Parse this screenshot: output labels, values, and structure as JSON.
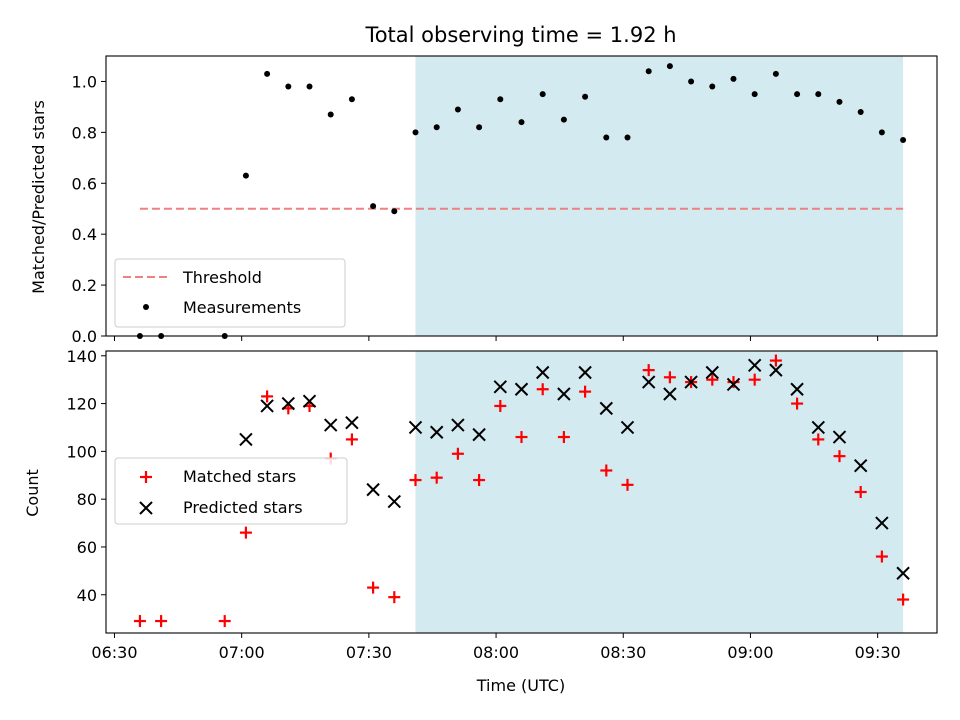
{
  "chart_data": [
    {
      "type": "scatter",
      "title": "Total observing time = 1.92 h",
      "xlabel": "",
      "ylabel": "Matched/Predicted stars",
      "ylim": [
        0,
        1.1
      ],
      "yticks": [
        "0.0",
        "0.2",
        "0.4",
        "0.6",
        "0.8",
        "1.0"
      ],
      "xlim": [
        "06:28",
        "09:44"
      ],
      "shaded_region": {
        "from": "07:41",
        "to": "09:36",
        "color": "#d4eaf1"
      },
      "legend": {
        "placement": "lower-left",
        "entries": [
          "Threshold",
          "Measurements"
        ]
      },
      "threshold": {
        "name": "Threshold",
        "value": 0.5,
        "from": "06:36",
        "to": "09:36",
        "color": "#f08080"
      },
      "series": [
        {
          "name": "Measurements",
          "color": "#000000",
          "points": [
            [
              "06:36",
              0.0
            ],
            [
              "06:41",
              0.0
            ],
            [
              "06:56",
              0.0
            ],
            [
              "07:01",
              0.63
            ],
            [
              "07:06",
              1.03
            ],
            [
              "07:11",
              0.98
            ],
            [
              "07:16",
              0.98
            ],
            [
              "07:21",
              0.87
            ],
            [
              "07:26",
              0.93
            ],
            [
              "07:31",
              0.51
            ],
            [
              "07:36",
              0.49
            ],
            [
              "07:41",
              0.8
            ],
            [
              "07:46",
              0.82
            ],
            [
              "07:51",
              0.89
            ],
            [
              "07:56",
              0.82
            ],
            [
              "08:01",
              0.93
            ],
            [
              "08:06",
              0.84
            ],
            [
              "08:11",
              0.95
            ],
            [
              "08:16",
              0.85
            ],
            [
              "08:21",
              0.94
            ],
            [
              "08:26",
              0.78
            ],
            [
              "08:31",
              0.78
            ],
            [
              "08:36",
              1.04
            ],
            [
              "08:41",
              1.06
            ],
            [
              "08:46",
              1.0
            ],
            [
              "08:51",
              0.98
            ],
            [
              "08:56",
              1.01
            ],
            [
              "09:01",
              0.95
            ],
            [
              "09:06",
              1.03
            ],
            [
              "09:11",
              0.95
            ],
            [
              "09:16",
              0.95
            ],
            [
              "09:21",
              0.92
            ],
            [
              "09:26",
              0.88
            ],
            [
              "09:31",
              0.8
            ],
            [
              "09:36",
              0.77
            ]
          ]
        }
      ]
    },
    {
      "type": "scatter",
      "title": "",
      "xlabel": "Time (UTC)",
      "ylabel": "Count",
      "ylim": [
        24,
        142
      ],
      "yticks": [
        "40",
        "60",
        "80",
        "100",
        "120",
        "140"
      ],
      "xlim": [
        "06:28",
        "09:44"
      ],
      "xticks": [
        "06:30",
        "07:00",
        "07:30",
        "08:00",
        "08:30",
        "09:00",
        "09:30"
      ],
      "shaded_region": {
        "from": "07:41",
        "to": "09:36",
        "color": "#d4eaf1"
      },
      "legend": {
        "placement": "center-left",
        "entries": [
          "Matched stars",
          "Predicted stars"
        ]
      },
      "series": [
        {
          "name": "Matched stars",
          "marker": "plus",
          "color": "#ff0000",
          "points": [
            [
              "06:36",
              29
            ],
            [
              "06:41",
              29
            ],
            [
              "06:56",
              29
            ],
            [
              "07:01",
              66
            ],
            [
              "07:06",
              123
            ],
            [
              "07:11",
              118
            ],
            [
              "07:16",
              119
            ],
            [
              "07:21",
              97
            ],
            [
              "07:26",
              105
            ],
            [
              "07:31",
              43
            ],
            [
              "07:36",
              39
            ],
            [
              "07:41",
              88
            ],
            [
              "07:46",
              89
            ],
            [
              "07:51",
              99
            ],
            [
              "07:56",
              88
            ],
            [
              "08:01",
              119
            ],
            [
              "08:06",
              106
            ],
            [
              "08:11",
              126
            ],
            [
              "08:16",
              106
            ],
            [
              "08:21",
              125
            ],
            [
              "08:26",
              92
            ],
            [
              "08:31",
              86
            ],
            [
              "08:36",
              134
            ],
            [
              "08:41",
              131
            ],
            [
              "08:46",
              129
            ],
            [
              "08:51",
              130
            ],
            [
              "08:56",
              129
            ],
            [
              "09:01",
              130
            ],
            [
              "09:06",
              138
            ],
            [
              "09:11",
              120
            ],
            [
              "09:16",
              105
            ],
            [
              "09:21",
              98
            ],
            [
              "09:26",
              83
            ],
            [
              "09:31",
              56
            ],
            [
              "09:36",
              38
            ]
          ]
        },
        {
          "name": "Predicted stars",
          "marker": "x",
          "color": "#000000",
          "points": [
            [
              "07:01",
              105
            ],
            [
              "07:06",
              119
            ],
            [
              "07:11",
              120
            ],
            [
              "07:16",
              121
            ],
            [
              "07:21",
              111
            ],
            [
              "07:26",
              112
            ],
            [
              "07:31",
              84
            ],
            [
              "07:36",
              79
            ],
            [
              "07:41",
              110
            ],
            [
              "07:46",
              108
            ],
            [
              "07:51",
              111
            ],
            [
              "07:56",
              107
            ],
            [
              "08:01",
              127
            ],
            [
              "08:06",
              126
            ],
            [
              "08:11",
              133
            ],
            [
              "08:16",
              124
            ],
            [
              "08:21",
              133
            ],
            [
              "08:26",
              118
            ],
            [
              "08:31",
              110
            ],
            [
              "08:36",
              129
            ],
            [
              "08:41",
              124
            ],
            [
              "08:46",
              129
            ],
            [
              "08:51",
              133
            ],
            [
              "08:56",
              128
            ],
            [
              "09:01",
              136
            ],
            [
              "09:06",
              134
            ],
            [
              "09:11",
              126
            ],
            [
              "09:16",
              110
            ],
            [
              "09:21",
              106
            ],
            [
              "09:26",
              94
            ],
            [
              "09:31",
              70
            ],
            [
              "09:36",
              49
            ]
          ]
        }
      ]
    }
  ]
}
